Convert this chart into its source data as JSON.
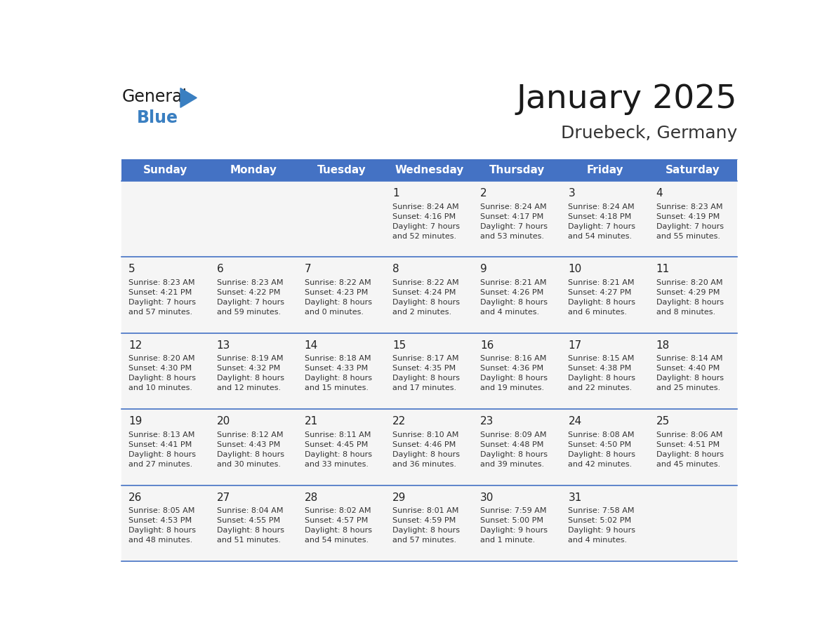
{
  "title": "January 2025",
  "subtitle": "Druebeck, Germany",
  "days_of_week": [
    "Sunday",
    "Monday",
    "Tuesday",
    "Wednesday",
    "Thursday",
    "Friday",
    "Saturday"
  ],
  "header_bg": "#4472C4",
  "header_text": "#FFFFFF",
  "cell_bg": "#F5F5F5",
  "cell_border_color": "#4472C4",
  "day_number_color": "#222222",
  "text_color": "#333333",
  "title_color": "#1a1a1a",
  "subtitle_color": "#333333",
  "logo_general_color": "#1a1a1a",
  "logo_blue_color": "#3A7FC1",
  "weeks": [
    [
      {
        "day": 0,
        "info": ""
      },
      {
        "day": 0,
        "info": ""
      },
      {
        "day": 0,
        "info": ""
      },
      {
        "day": 1,
        "info": "Sunrise: 8:24 AM\nSunset: 4:16 PM\nDaylight: 7 hours\nand 52 minutes."
      },
      {
        "day": 2,
        "info": "Sunrise: 8:24 AM\nSunset: 4:17 PM\nDaylight: 7 hours\nand 53 minutes."
      },
      {
        "day": 3,
        "info": "Sunrise: 8:24 AM\nSunset: 4:18 PM\nDaylight: 7 hours\nand 54 minutes."
      },
      {
        "day": 4,
        "info": "Sunrise: 8:23 AM\nSunset: 4:19 PM\nDaylight: 7 hours\nand 55 minutes."
      }
    ],
    [
      {
        "day": 5,
        "info": "Sunrise: 8:23 AM\nSunset: 4:21 PM\nDaylight: 7 hours\nand 57 minutes."
      },
      {
        "day": 6,
        "info": "Sunrise: 8:23 AM\nSunset: 4:22 PM\nDaylight: 7 hours\nand 59 minutes."
      },
      {
        "day": 7,
        "info": "Sunrise: 8:22 AM\nSunset: 4:23 PM\nDaylight: 8 hours\nand 0 minutes."
      },
      {
        "day": 8,
        "info": "Sunrise: 8:22 AM\nSunset: 4:24 PM\nDaylight: 8 hours\nand 2 minutes."
      },
      {
        "day": 9,
        "info": "Sunrise: 8:21 AM\nSunset: 4:26 PM\nDaylight: 8 hours\nand 4 minutes."
      },
      {
        "day": 10,
        "info": "Sunrise: 8:21 AM\nSunset: 4:27 PM\nDaylight: 8 hours\nand 6 minutes."
      },
      {
        "day": 11,
        "info": "Sunrise: 8:20 AM\nSunset: 4:29 PM\nDaylight: 8 hours\nand 8 minutes."
      }
    ],
    [
      {
        "day": 12,
        "info": "Sunrise: 8:20 AM\nSunset: 4:30 PM\nDaylight: 8 hours\nand 10 minutes."
      },
      {
        "day": 13,
        "info": "Sunrise: 8:19 AM\nSunset: 4:32 PM\nDaylight: 8 hours\nand 12 minutes."
      },
      {
        "day": 14,
        "info": "Sunrise: 8:18 AM\nSunset: 4:33 PM\nDaylight: 8 hours\nand 15 minutes."
      },
      {
        "day": 15,
        "info": "Sunrise: 8:17 AM\nSunset: 4:35 PM\nDaylight: 8 hours\nand 17 minutes."
      },
      {
        "day": 16,
        "info": "Sunrise: 8:16 AM\nSunset: 4:36 PM\nDaylight: 8 hours\nand 19 minutes."
      },
      {
        "day": 17,
        "info": "Sunrise: 8:15 AM\nSunset: 4:38 PM\nDaylight: 8 hours\nand 22 minutes."
      },
      {
        "day": 18,
        "info": "Sunrise: 8:14 AM\nSunset: 4:40 PM\nDaylight: 8 hours\nand 25 minutes."
      }
    ],
    [
      {
        "day": 19,
        "info": "Sunrise: 8:13 AM\nSunset: 4:41 PM\nDaylight: 8 hours\nand 27 minutes."
      },
      {
        "day": 20,
        "info": "Sunrise: 8:12 AM\nSunset: 4:43 PM\nDaylight: 8 hours\nand 30 minutes."
      },
      {
        "day": 21,
        "info": "Sunrise: 8:11 AM\nSunset: 4:45 PM\nDaylight: 8 hours\nand 33 minutes."
      },
      {
        "day": 22,
        "info": "Sunrise: 8:10 AM\nSunset: 4:46 PM\nDaylight: 8 hours\nand 36 minutes."
      },
      {
        "day": 23,
        "info": "Sunrise: 8:09 AM\nSunset: 4:48 PM\nDaylight: 8 hours\nand 39 minutes."
      },
      {
        "day": 24,
        "info": "Sunrise: 8:08 AM\nSunset: 4:50 PM\nDaylight: 8 hours\nand 42 minutes."
      },
      {
        "day": 25,
        "info": "Sunrise: 8:06 AM\nSunset: 4:51 PM\nDaylight: 8 hours\nand 45 minutes."
      }
    ],
    [
      {
        "day": 26,
        "info": "Sunrise: 8:05 AM\nSunset: 4:53 PM\nDaylight: 8 hours\nand 48 minutes."
      },
      {
        "day": 27,
        "info": "Sunrise: 8:04 AM\nSunset: 4:55 PM\nDaylight: 8 hours\nand 51 minutes."
      },
      {
        "day": 28,
        "info": "Sunrise: 8:02 AM\nSunset: 4:57 PM\nDaylight: 8 hours\nand 54 minutes."
      },
      {
        "day": 29,
        "info": "Sunrise: 8:01 AM\nSunset: 4:59 PM\nDaylight: 8 hours\nand 57 minutes."
      },
      {
        "day": 30,
        "info": "Sunrise: 7:59 AM\nSunset: 5:00 PM\nDaylight: 9 hours\nand 1 minute."
      },
      {
        "day": 31,
        "info": "Sunrise: 7:58 AM\nSunset: 5:02 PM\nDaylight: 9 hours\nand 4 minutes."
      },
      {
        "day": 0,
        "info": ""
      }
    ]
  ]
}
